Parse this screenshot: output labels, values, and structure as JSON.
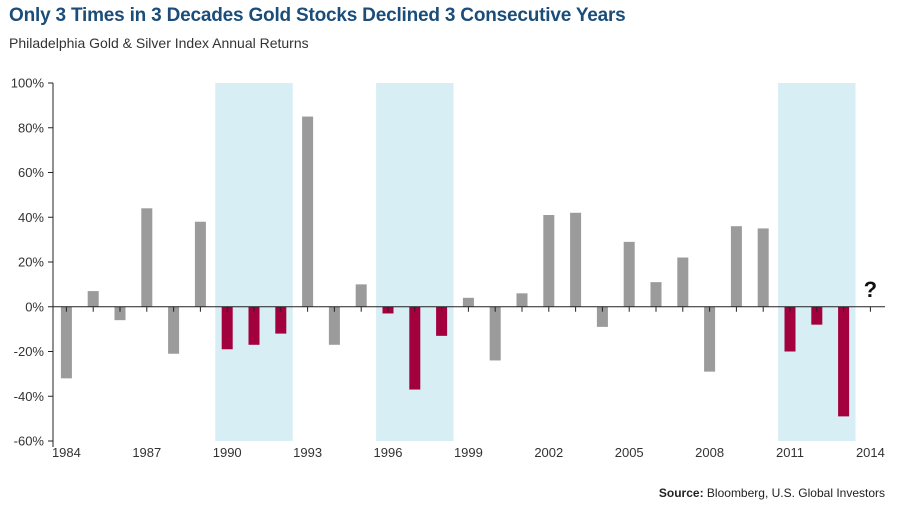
{
  "chart_data": {
    "type": "bar",
    "title": "Only 3 Times in 3 Decades Gold Stocks Declined 3 Consecutive Years",
    "subtitle": "Philadelphia Gold & Silver Index Annual Returns",
    "source_label": "Source:",
    "source_text": "Bloomberg, U.S. Global Investors",
    "annotation": "?",
    "annotation_year": 2014,
    "ylim": [
      -60,
      100
    ],
    "y_ticks": [
      100,
      80,
      60,
      40,
      20,
      0,
      -20,
      -40,
      -60
    ],
    "y_tick_labels": [
      "100%",
      "80%",
      "60%",
      "40%",
      "20%",
      "0%",
      "-20%",
      "-40%",
      "-60%"
    ],
    "x_range": [
      1984,
      2014
    ],
    "x_ticks": [
      1984,
      1987,
      1990,
      1993,
      1996,
      1999,
      2002,
      2005,
      2008,
      2011,
      2014
    ],
    "x_tick_labels": [
      "1984",
      "1987",
      "1990",
      "1993",
      "1996",
      "1999",
      "2002",
      "2005",
      "2008",
      "2011",
      "2014"
    ],
    "highlight_periods": [
      [
        1990,
        1992
      ],
      [
        1996,
        1998
      ],
      [
        2011,
        2013
      ]
    ],
    "colors": {
      "positive_bar": "#9b9b9b",
      "highlight_bar": "#a3003e",
      "highlight_band": "#d6eef4",
      "title": "#1b4d7a"
    },
    "years": [
      1984,
      1985,
      1986,
      1987,
      1988,
      1989,
      1990,
      1991,
      1992,
      1993,
      1994,
      1995,
      1996,
      1997,
      1998,
      1999,
      2000,
      2001,
      2002,
      2003,
      2004,
      2005,
      2006,
      2007,
      2008,
      2009,
      2010,
      2011,
      2012,
      2013
    ],
    "values": [
      -32,
      7,
      -6,
      44,
      -21,
      38,
      -19,
      -17,
      -12,
      85,
      -17,
      10,
      -3,
      -37,
      -13,
      4,
      -24,
      6,
      41,
      42,
      -9,
      29,
      11,
      22,
      -29,
      36,
      35,
      -20,
      -8,
      -49
    ],
    "highlighted": [
      false,
      false,
      false,
      false,
      false,
      false,
      true,
      true,
      true,
      false,
      false,
      false,
      true,
      true,
      true,
      false,
      false,
      false,
      false,
      false,
      false,
      false,
      false,
      false,
      false,
      false,
      false,
      true,
      true,
      true
    ]
  }
}
